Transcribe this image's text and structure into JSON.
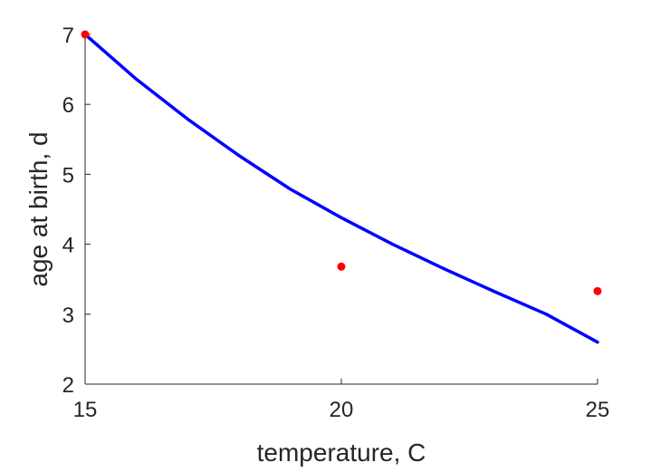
{
  "chart_data": {
    "type": "line",
    "title": "",
    "xlabel": "temperature, C",
    "ylabel": "age at birth, d",
    "xlim": [
      15,
      25
    ],
    "ylim": [
      2,
      7
    ],
    "xticks": [
      15,
      20,
      25
    ],
    "yticks": [
      2,
      3,
      4,
      5,
      6,
      7
    ],
    "grid": false,
    "legend": "none",
    "series": [
      {
        "kind": "line",
        "color": "#0000ff",
        "x": [
          15,
          16,
          17,
          18,
          19,
          20,
          21,
          22,
          23,
          24,
          25
        ],
        "y": [
          7.0,
          6.36,
          5.79,
          5.27,
          4.79,
          4.38,
          4.0,
          3.65,
          3.32,
          3.0,
          2.6
        ]
      },
      {
        "kind": "scatter",
        "color": "#ff0000",
        "x": [
          15,
          20,
          25
        ],
        "y": [
          7.0,
          3.68,
          3.33
        ]
      }
    ]
  }
}
